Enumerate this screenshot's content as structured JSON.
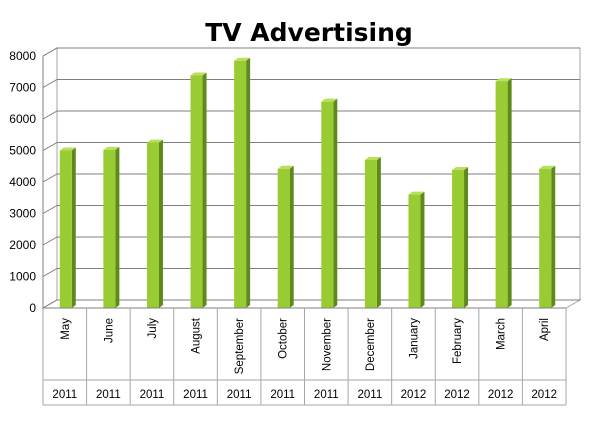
{
  "chart_data": {
    "type": "bar",
    "title": "TV Advertising",
    "xlabel": "",
    "ylabel": "",
    "ylim": [
      0,
      8000
    ],
    "yticks": [
      0,
      1000,
      2000,
      3000,
      4000,
      5000,
      6000,
      7000,
      8000
    ],
    "grid": true,
    "legend": "none",
    "bar_color": "#99cc33",
    "bar_side_color": "#5e8a1c",
    "bar_top_color": "#b8e05a",
    "categories": [
      {
        "month": "May",
        "year": "2011"
      },
      {
        "month": "June",
        "year": "2011"
      },
      {
        "month": "July",
        "year": "2011"
      },
      {
        "month": "August",
        "year": "2011"
      },
      {
        "month": "September",
        "year": "2011"
      },
      {
        "month": "October",
        "year": "2011"
      },
      {
        "month": "November",
        "year": "2011"
      },
      {
        "month": "December",
        "year": "2011"
      },
      {
        "month": "January",
        "year": "2012"
      },
      {
        "month": "February",
        "year": "2012"
      },
      {
        "month": "March",
        "year": "2012"
      },
      {
        "month": "April",
        "year": "2012"
      }
    ],
    "values": [
      5000,
      5020,
      5250,
      7380,
      7850,
      4420,
      6550,
      4700,
      3600,
      4380,
      7200,
      4420
    ]
  }
}
